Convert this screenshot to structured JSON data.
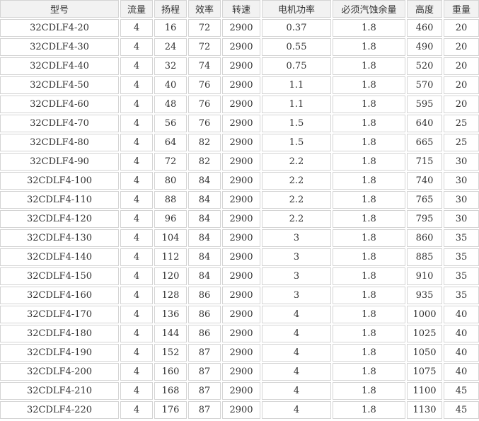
{
  "colors": {
    "border": "#d4d4d4",
    "header_bg": "#f2f2f2",
    "row_bg": "#ffffff",
    "text": "#333333"
  },
  "table": {
    "columns": [
      "型号",
      "流量",
      "扬程",
      "效率",
      "转速",
      "电机功率",
      "必须汽蚀余量",
      "高度",
      "重量"
    ],
    "rows": [
      [
        "32CDLF4-20",
        "4",
        "16",
        "72",
        "2900",
        "0.37",
        "1.8",
        "460",
        "20"
      ],
      [
        "32CDLF4-30",
        "4",
        "24",
        "72",
        "2900",
        "0.55",
        "1.8",
        "490",
        "20"
      ],
      [
        "32CDLF4-40",
        "4",
        "32",
        "74",
        "2900",
        "0.75",
        "1.8",
        "520",
        "20"
      ],
      [
        "32CDLF4-50",
        "4",
        "40",
        "76",
        "2900",
        "1.1",
        "1.8",
        "570",
        "20"
      ],
      [
        "32CDLF4-60",
        "4",
        "48",
        "76",
        "2900",
        "1.1",
        "1.8",
        "595",
        "20"
      ],
      [
        "32CDLF4-70",
        "4",
        "56",
        "76",
        "2900",
        "1.5",
        "1.8",
        "640",
        "25"
      ],
      [
        "32CDLF4-80",
        "4",
        "64",
        "82",
        "2900",
        "1.5",
        "1.8",
        "665",
        "25"
      ],
      [
        "32CDLF4-90",
        "4",
        "72",
        "82",
        "2900",
        "2.2",
        "1.8",
        "715",
        "30"
      ],
      [
        "32CDLF4-100",
        "4",
        "80",
        "84",
        "2900",
        "2.2",
        "1.8",
        "740",
        "30"
      ],
      [
        "32CDLF4-110",
        "4",
        "88",
        "84",
        "2900",
        "2.2",
        "1.8",
        "765",
        "30"
      ],
      [
        "32CDLF4-120",
        "4",
        "96",
        "84",
        "2900",
        "2.2",
        "1.8",
        "795",
        "30"
      ],
      [
        "32CDLF4-130",
        "4",
        "104",
        "84",
        "2900",
        "3",
        "1.8",
        "860",
        "35"
      ],
      [
        "32CDLF4-140",
        "4",
        "112",
        "84",
        "2900",
        "3",
        "1.8",
        "885",
        "35"
      ],
      [
        "32CDLF4-150",
        "4",
        "120",
        "84",
        "2900",
        "3",
        "1.8",
        "910",
        "35"
      ],
      [
        "32CDLF4-160",
        "4",
        "128",
        "86",
        "2900",
        "3",
        "1.8",
        "935",
        "35"
      ],
      [
        "32CDLF4-170",
        "4",
        "136",
        "86",
        "2900",
        "4",
        "1.8",
        "1000",
        "40"
      ],
      [
        "32CDLF4-180",
        "4",
        "144",
        "86",
        "2900",
        "4",
        "1.8",
        "1025",
        "40"
      ],
      [
        "32CDLF4-190",
        "4",
        "152",
        "87",
        "2900",
        "4",
        "1.8",
        "1050",
        "40"
      ],
      [
        "32CDLF4-200",
        "4",
        "160",
        "87",
        "2900",
        "4",
        "1.8",
        "1075",
        "40"
      ],
      [
        "32CDLF4-210",
        "4",
        "168",
        "87",
        "2900",
        "4",
        "1.8",
        "1100",
        "45"
      ],
      [
        "32CDLF4-220",
        "4",
        "176",
        "87",
        "2900",
        "4",
        "1.8",
        "1130",
        "45"
      ]
    ]
  }
}
